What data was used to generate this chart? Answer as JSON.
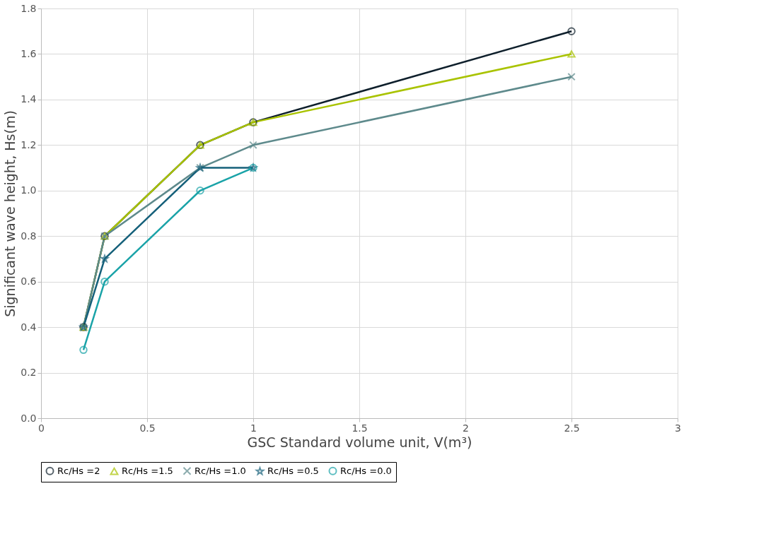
{
  "chart_data": {
    "type": "line",
    "xlabel": "GSC Standard volume unit, V(m³)",
    "ylabel": "Significant wave height, Hs(m)",
    "xlim": [
      0,
      3
    ],
    "xticks": [
      0,
      0.5,
      1,
      1.5,
      2,
      2.5,
      3
    ],
    "ylim": [
      0,
      1.8
    ],
    "yticks": [
      {
        "value": 0,
        "label": "0.0"
      },
      {
        "value": 0.2,
        "label": "0.2"
      },
      {
        "value": 0.4,
        "label": "0.4"
      },
      {
        "value": 0.6,
        "label": "0.6"
      },
      {
        "value": 0.8,
        "label": "0.8"
      },
      {
        "value": 1,
        "label": "1.0"
      },
      {
        "value": 1.2,
        "label": "1.2"
      },
      {
        "value": 1.4,
        "label": "1.4"
      },
      {
        "value": 1.6,
        "label": "1.6"
      },
      {
        "value": 1.8,
        "label": "1.8"
      }
    ],
    "grid": true,
    "legend": "bottom",
    "line_style": "solid",
    "series": [
      {
        "name": "Rc/Hs =2",
        "color": "#0e1f2b",
        "marker": "circle",
        "x": [
          0.2,
          0.3,
          0.75,
          1,
          2.5
        ],
        "values": [
          0.4,
          0.8,
          1.2,
          1.3,
          1.7
        ]
      },
      {
        "name": "Rc/Hs =1.5",
        "color": "#a9c300",
        "marker": "triangle",
        "x": [
          0.2,
          0.3,
          0.75,
          1,
          2.5
        ],
        "values": [
          0.4,
          0.8,
          1.2,
          1.3,
          1.6
        ]
      },
      {
        "name": "Rc/Hs =1.0",
        "color": "#5e8a8c",
        "marker": "cross",
        "x": [
          0.2,
          0.3,
          0.75,
          1,
          2.5
        ],
        "values": [
          0.4,
          0.8,
          1.1,
          1.2,
          1.5
        ]
      },
      {
        "name": "Rc/Hs =0.5",
        "color": "#15607a",
        "marker": "star",
        "x": [
          0.2,
          0.3,
          0.75,
          1
        ],
        "values": [
          0.4,
          0.7,
          1.1,
          1.1
        ]
      },
      {
        "name": "Rc/Hs =0.0",
        "color": "#1aa3a8",
        "marker": "circle",
        "x": [
          0.2,
          0.3,
          0.75,
          1
        ],
        "values": [
          0.3,
          0.6,
          1.0,
          1.1
        ]
      }
    ]
  }
}
